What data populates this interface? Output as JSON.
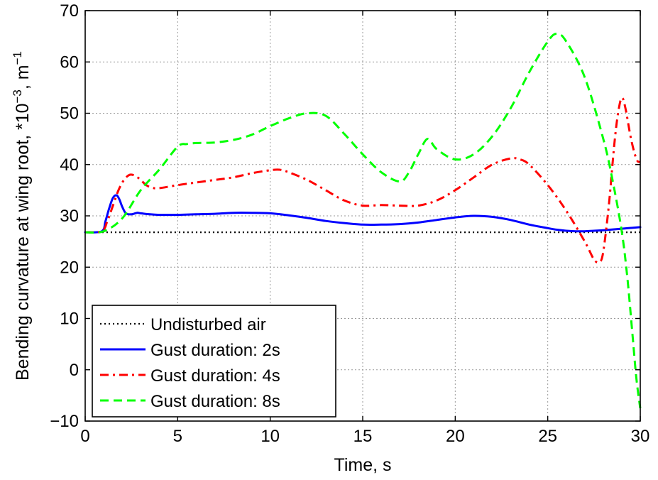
{
  "chart_data": {
    "type": "line",
    "title": "",
    "xlabel": "Time, s",
    "ylabel": "Bending curvature at wing root, *10",
    "ylabel_exp": "−3",
    "ylabel_unit": ", m",
    "ylabel_unit_exp": "−1",
    "xlim": [
      0,
      30
    ],
    "ylim": [
      -10,
      70
    ],
    "xticks": [
      0,
      5,
      10,
      15,
      20,
      25,
      30
    ],
    "yticks": [
      -10,
      0,
      10,
      20,
      30,
      40,
      50,
      60,
      70
    ],
    "xtick_labels": [
      "0",
      "5",
      "10",
      "15",
      "20",
      "25",
      "30"
    ],
    "ytick_labels": [
      "−10",
      "0",
      "10",
      "20",
      "30",
      "40",
      "50",
      "60",
      "70"
    ],
    "grid": true,
    "legend_position": "bottom-left",
    "series": [
      {
        "name": "Undisturbed air",
        "color": "#000000",
        "style": "dotted",
        "x": [
          0,
          30
        ],
        "y": [
          26.8,
          26.8
        ]
      },
      {
        "name": "Gust duration: 2s",
        "color": "#0000ff",
        "style": "solid",
        "x": [
          0,
          0.9,
          1.1,
          1.3,
          1.5,
          1.7,
          1.85,
          2.0,
          2.2,
          2.5,
          2.8,
          3.0,
          3.5,
          4.0,
          5,
          6,
          7,
          8,
          9,
          10,
          11,
          12,
          13,
          14,
          15,
          16,
          17,
          18,
          19,
          20,
          21,
          22,
          23,
          24,
          25,
          25.5,
          26,
          26.5,
          27,
          27.5,
          28,
          29,
          30
        ],
        "y": [
          26.8,
          27.0,
          29.0,
          31.5,
          33.5,
          34.0,
          33.2,
          31.8,
          30.5,
          30.3,
          30.6,
          30.5,
          30.3,
          30.2,
          30.2,
          30.3,
          30.4,
          30.6,
          30.6,
          30.5,
          30.1,
          29.6,
          29.0,
          28.6,
          28.3,
          28.3,
          28.4,
          28.7,
          29.2,
          29.7,
          30.0,
          29.8,
          29.2,
          28.3,
          27.6,
          27.3,
          27.1,
          27.0,
          27.0,
          27.1,
          27.2,
          27.5,
          27.8
        ]
      },
      {
        "name": "Gust duration: 4s",
        "color": "#ff0000",
        "style": "dashdot",
        "x": [
          0,
          0.9,
          1.2,
          1.5,
          1.8,
          2.1,
          2.4,
          2.7,
          3.0,
          3.3,
          3.6,
          4.0,
          5,
          6,
          7,
          8,
          9,
          10,
          10.5,
          11,
          12,
          13,
          14,
          15,
          16,
          17,
          18,
          19,
          20,
          21,
          22,
          23,
          23.5,
          24,
          25,
          26,
          27,
          27.5,
          27.8,
          28.0,
          28.3,
          28.6,
          28.8,
          29.0,
          29.2,
          29.5,
          29.8,
          30
        ],
        "y": [
          26.8,
          27.0,
          29.0,
          32.0,
          35.0,
          37.0,
          38.0,
          37.8,
          37.0,
          36.0,
          35.5,
          35.4,
          36.0,
          36.5,
          37.0,
          37.5,
          38.3,
          38.9,
          39.0,
          38.5,
          37.0,
          35.0,
          33.0,
          32.0,
          32.1,
          32.0,
          32.0,
          33.0,
          35.0,
          37.5,
          40.0,
          41.2,
          41.0,
          40.0,
          36.0,
          31.0,
          25.0,
          21.5,
          21.0,
          23.0,
          32.0,
          44.0,
          50.0,
          53.0,
          51.0,
          45.0,
          41.0,
          40.5
        ]
      },
      {
        "name": "Gust duration: 8s",
        "color": "#00ff00",
        "style": "dashed",
        "x": [
          0,
          1,
          2,
          3,
          4,
          5,
          5.5,
          6,
          7,
          8,
          9,
          10,
          11,
          12,
          13,
          14,
          15,
          16,
          17,
          17.5,
          18,
          18.5,
          19,
          20,
          21,
          22,
          23,
          24,
          25,
          25.5,
          26,
          27,
          28,
          28.5,
          29,
          29.3,
          29.6,
          29.8,
          30
        ],
        "y": [
          26.8,
          27.0,
          29.5,
          35.0,
          39.0,
          43.5,
          44.0,
          44.2,
          44.3,
          44.8,
          45.8,
          47.5,
          49.0,
          50.0,
          49.5,
          46.0,
          42.0,
          38.5,
          36.7,
          38.5,
          42.0,
          45.0,
          43.0,
          41.0,
          42.0,
          45.5,
          51.0,
          58.0,
          64.0,
          65.5,
          64.0,
          57.0,
          45.0,
          37.0,
          27.0,
          18.0,
          6.0,
          -2.0,
          -7.5
        ]
      }
    ]
  }
}
